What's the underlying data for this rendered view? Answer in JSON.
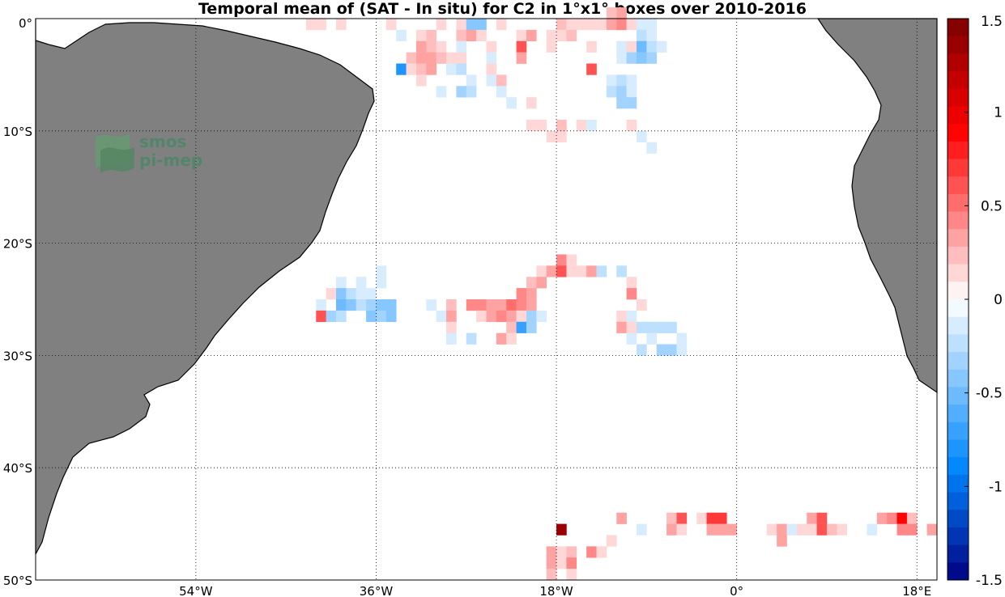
{
  "title": "Temporal mean of (SAT - In situ) for C2 in 1°x1° boxes over 2010-2016",
  "logo": {
    "line1": "smos",
    "line2": "pi-mep"
  },
  "colors": {
    "land": "#808080",
    "coast": "#000000",
    "background": "#ffffff"
  },
  "map": {
    "lon_range": [
      -70,
      20
    ],
    "lat_range": [
      -50,
      0
    ],
    "lat_ticks": [
      {
        "lat": 0,
        "label": "0°"
      },
      {
        "lat": -10,
        "label": "10°S"
      },
      {
        "lat": -20,
        "label": "20°S"
      },
      {
        "lat": -30,
        "label": "30°S"
      },
      {
        "lat": -40,
        "label": "40°S"
      },
      {
        "lat": -50,
        "label": "50°S"
      }
    ],
    "lon_ticks": [
      {
        "lon": -54,
        "label": "54°W"
      },
      {
        "lon": -36,
        "label": "36°W"
      },
      {
        "lon": -18,
        "label": "18°W"
      },
      {
        "lon": 0,
        "label": "0°"
      },
      {
        "lon": 18,
        "label": "18°E"
      }
    ],
    "grid": "dotted"
  },
  "colorbar": {
    "min": -1.5,
    "max": 1.5,
    "ticks": [
      {
        "v": 1.5,
        "label": "1.5"
      },
      {
        "v": 1,
        "label": "1"
      },
      {
        "v": 0.5,
        "label": "0.5"
      },
      {
        "v": 0,
        "label": "0"
      },
      {
        "v": -0.5,
        "label": "-0.5"
      },
      {
        "v": -1,
        "label": "-1"
      },
      {
        "v": -1.5,
        "label": "-1.5"
      }
    ],
    "levels": 32
  },
  "chart_data": {
    "type": "heatmap",
    "title": "Temporal mean of (SAT - In situ) for C2 in 1°x1° boxes over 2010-2016",
    "units_note": "",
    "cell_size_deg": 1,
    "cells": [
      {
        "lon": -43,
        "lat": -1,
        "v": 0.1
      },
      {
        "lon": -42,
        "lat": -1,
        "v": 0.15
      },
      {
        "lon": -40,
        "lat": -1,
        "v": 0.1
      },
      {
        "lon": -35,
        "lat": -1,
        "v": 0.1
      },
      {
        "lon": -30,
        "lat": -1,
        "v": 0.15
      },
      {
        "lon": -28,
        "lat": -1,
        "v": 0.15
      },
      {
        "lon": -27,
        "lat": -1,
        "v": -0.4
      },
      {
        "lon": -26,
        "lat": -1,
        "v": -0.4
      },
      {
        "lon": -24,
        "lat": -1,
        "v": 0.15
      },
      {
        "lon": -18,
        "lat": -1,
        "v": 0.2
      },
      {
        "lon": -17,
        "lat": -1,
        "v": 0.15
      },
      {
        "lon": -16,
        "lat": -1,
        "v": 0.1
      },
      {
        "lon": -15,
        "lat": -1,
        "v": 0.1
      },
      {
        "lon": -14,
        "lat": -1,
        "v": 0.15
      },
      {
        "lon": -13,
        "lat": -1,
        "v": 0.3
      },
      {
        "lon": -12,
        "lat": -1,
        "v": 0.4
      },
      {
        "lon": -11,
        "lat": -1,
        "v": 0.1
      },
      {
        "lon": -10,
        "lat": -1,
        "v": -0.1
      },
      {
        "lon": -9,
        "lat": -1,
        "v": -0.1
      },
      {
        "lon": -12,
        "lat": 0,
        "v": 0.3
      },
      {
        "lon": -13,
        "lat": 0,
        "v": 0.2
      },
      {
        "lon": -34,
        "lat": -2,
        "v": -0.1
      },
      {
        "lon": -32,
        "lat": -2,
        "v": 0.15
      },
      {
        "lon": -31,
        "lat": -2,
        "v": 0.2
      },
      {
        "lon": -28,
        "lat": -2,
        "v": 0.2
      },
      {
        "lon": -27,
        "lat": -2,
        "v": 0.3
      },
      {
        "lon": -26,
        "lat": -2,
        "v": 0.15
      },
      {
        "lon": -22,
        "lat": -2,
        "v": 0.1
      },
      {
        "lon": -21,
        "lat": -2,
        "v": 0.3
      },
      {
        "lon": -19,
        "lat": -2,
        "v": 0.1
      },
      {
        "lon": -18,
        "lat": -2,
        "v": 0.15
      },
      {
        "lon": -17,
        "lat": -2,
        "v": 0.2
      },
      {
        "lon": -10,
        "lat": -2,
        "v": -0.2
      },
      {
        "lon": -9,
        "lat": -2,
        "v": -0.15
      },
      {
        "lon": -32,
        "lat": -3,
        "v": 0.3
      },
      {
        "lon": -31,
        "lat": -3,
        "v": 0.25
      },
      {
        "lon": -30,
        "lat": -3,
        "v": 0.15
      },
      {
        "lon": -28,
        "lat": -3,
        "v": -0.1
      },
      {
        "lon": -25,
        "lat": -3,
        "v": 0.15
      },
      {
        "lon": -22,
        "lat": -3,
        "v": 0.6
      },
      {
        "lon": -19,
        "lat": -3,
        "v": 0.1
      },
      {
        "lon": -15,
        "lat": -3,
        "v": 0.15
      },
      {
        "lon": -12,
        "lat": -3,
        "v": -0.15
      },
      {
        "lon": -11,
        "lat": -3,
        "v": 0.1
      },
      {
        "lon": -10,
        "lat": -3,
        "v": -0.5
      },
      {
        "lon": -9,
        "lat": -3,
        "v": -0.2
      },
      {
        "lon": -8,
        "lat": -3,
        "v": -0.1
      },
      {
        "lon": -33,
        "lat": -4,
        "v": 0.2
      },
      {
        "lon": -32,
        "lat": -4,
        "v": 0.35
      },
      {
        "lon": -31,
        "lat": -4,
        "v": 0.3
      },
      {
        "lon": -30,
        "lat": -4,
        "v": 0.2
      },
      {
        "lon": -29,
        "lat": -4,
        "v": 0.1
      },
      {
        "lon": -28,
        "lat": -4,
        "v": 0.1
      },
      {
        "lon": -25,
        "lat": -4,
        "v": -0.1
      },
      {
        "lon": -22,
        "lat": -4,
        "v": 0.3
      },
      {
        "lon": -12,
        "lat": -4,
        "v": -0.1
      },
      {
        "lon": -11,
        "lat": -4,
        "v": -0.3
      },
      {
        "lon": -10,
        "lat": -4,
        "v": -0.45
      },
      {
        "lon": -9,
        "lat": -4,
        "v": -0.3
      },
      {
        "lon": -34,
        "lat": -5,
        "v": -0.8
      },
      {
        "lon": -33,
        "lat": -5,
        "v": 0.1
      },
      {
        "lon": -32,
        "lat": -5,
        "v": 0.2
      },
      {
        "lon": -31,
        "lat": -5,
        "v": 0.3
      },
      {
        "lon": -29,
        "lat": -5,
        "v": -0.15
      },
      {
        "lon": -28,
        "lat": -5,
        "v": -0.2
      },
      {
        "lon": -25,
        "lat": -5,
        "v": 0.15
      },
      {
        "lon": -15,
        "lat": -5,
        "v": 0.6
      },
      {
        "lon": -32,
        "lat": -6,
        "v": 0.15
      },
      {
        "lon": -27,
        "lat": -6,
        "v": -0.1
      },
      {
        "lon": -25,
        "lat": -6,
        "v": -0.1
      },
      {
        "lon": -24,
        "lat": -6,
        "v": 0.2
      },
      {
        "lon": -13,
        "lat": -6,
        "v": -0.15
      },
      {
        "lon": -12,
        "lat": -6,
        "v": -0.2
      },
      {
        "lon": -11,
        "lat": -6,
        "v": -0.15
      },
      {
        "lon": -30,
        "lat": -7,
        "v": -0.1
      },
      {
        "lon": -28,
        "lat": -7,
        "v": -0.3
      },
      {
        "lon": -27,
        "lat": -7,
        "v": -0.2
      },
      {
        "lon": -24,
        "lat": -7,
        "v": -0.1
      },
      {
        "lon": -13,
        "lat": -7,
        "v": -0.2
      },
      {
        "lon": -12,
        "lat": -7,
        "v": -0.3
      },
      {
        "lon": -11,
        "lat": -7,
        "v": -0.15
      },
      {
        "lon": -23,
        "lat": -8,
        "v": -0.1
      },
      {
        "lon": -21,
        "lat": -8,
        "v": 0.15
      },
      {
        "lon": -12,
        "lat": -8,
        "v": -0.35
      },
      {
        "lon": -11,
        "lat": -8,
        "v": -0.3
      },
      {
        "lon": -21,
        "lat": -10,
        "v": 0.15
      },
      {
        "lon": -20,
        "lat": -10,
        "v": 0.1
      },
      {
        "lon": -18,
        "lat": -10,
        "v": 0.2
      },
      {
        "lon": -16,
        "lat": -10,
        "v": 0.1
      },
      {
        "lon": -15,
        "lat": -10,
        "v": -0.15
      },
      {
        "lon": -11,
        "lat": -10,
        "v": 0.1
      },
      {
        "lon": -19,
        "lat": -11,
        "v": 0.15
      },
      {
        "lon": -18,
        "lat": -11,
        "v": 0.15
      },
      {
        "lon": -10,
        "lat": -11,
        "v": -0.1
      },
      {
        "lon": -9,
        "lat": -12,
        "v": -0.1
      },
      {
        "lon": -18,
        "lat": -22,
        "v": 0.45
      },
      {
        "lon": -17,
        "lat": -22,
        "v": 0.15
      },
      {
        "lon": -20,
        "lat": -23,
        "v": 0.1
      },
      {
        "lon": -19,
        "lat": -23,
        "v": 0.3
      },
      {
        "lon": -18,
        "lat": -23,
        "v": 0.6
      },
      {
        "lon": -17,
        "lat": -23,
        "v": 0.1
      },
      {
        "lon": -16,
        "lat": -23,
        "v": 0.15
      },
      {
        "lon": -15,
        "lat": -23,
        "v": 0.3
      },
      {
        "lon": -14,
        "lat": -23,
        "v": -0.2
      },
      {
        "lon": -12,
        "lat": -23,
        "v": -0.25
      },
      {
        "lon": -36,
        "lat": -23,
        "v": -0.15
      },
      {
        "lon": -21,
        "lat": -24,
        "v": 0.2
      },
      {
        "lon": -20,
        "lat": -24,
        "v": 0.3
      },
      {
        "lon": -11,
        "lat": -24,
        "v": 0.15
      },
      {
        "lon": -40,
        "lat": -24,
        "v": -0.15
      },
      {
        "lon": -38,
        "lat": -24,
        "v": -0.1
      },
      {
        "lon": -36,
        "lat": -24,
        "v": -0.15
      },
      {
        "lon": -41,
        "lat": -25,
        "v": 0.15
      },
      {
        "lon": -40,
        "lat": -25,
        "v": -0.4
      },
      {
        "lon": -39,
        "lat": -25,
        "v": -0.2
      },
      {
        "lon": -38,
        "lat": -25,
        "v": -0.15
      },
      {
        "lon": -37,
        "lat": -25,
        "v": -0.1
      },
      {
        "lon": -22,
        "lat": -25,
        "v": 0.4
      },
      {
        "lon": -21,
        "lat": -25,
        "v": 0.3
      },
      {
        "lon": -11,
        "lat": -25,
        "v": 0.4
      },
      {
        "lon": -42,
        "lat": -26,
        "v": -0.1
      },
      {
        "lon": -40,
        "lat": -26,
        "v": -0.5
      },
      {
        "lon": -39,
        "lat": -26,
        "v": -0.45
      },
      {
        "lon": -38,
        "lat": -26,
        "v": -0.2
      },
      {
        "lon": -37,
        "lat": -26,
        "v": -0.3
      },
      {
        "lon": -36,
        "lat": -26,
        "v": -0.45
      },
      {
        "lon": -35,
        "lat": -26,
        "v": -0.45
      },
      {
        "lon": -31,
        "lat": -26,
        "v": -0.1
      },
      {
        "lon": -29,
        "lat": -26,
        "v": 0.2
      },
      {
        "lon": -27,
        "lat": -26,
        "v": 0.4
      },
      {
        "lon": -26,
        "lat": -26,
        "v": 0.4
      },
      {
        "lon": -25,
        "lat": -26,
        "v": 0.3
      },
      {
        "lon": -24,
        "lat": -26,
        "v": 0.35
      },
      {
        "lon": -23,
        "lat": -26,
        "v": 0.5
      },
      {
        "lon": -22,
        "lat": -26,
        "v": 0.45
      },
      {
        "lon": -21,
        "lat": -26,
        "v": 0.3
      },
      {
        "lon": -10,
        "lat": -26,
        "v": 0.15
      },
      {
        "lon": -42,
        "lat": -27,
        "v": 0.6
      },
      {
        "lon": -41,
        "lat": -27,
        "v": -0.3
      },
      {
        "lon": -40,
        "lat": -27,
        "v": -0.2
      },
      {
        "lon": -37,
        "lat": -27,
        "v": -0.45
      },
      {
        "lon": -36,
        "lat": -27,
        "v": -0.3
      },
      {
        "lon": -35,
        "lat": -27,
        "v": -0.45
      },
      {
        "lon": -30,
        "lat": -27,
        "v": -0.1
      },
      {
        "lon": -29,
        "lat": -27,
        "v": 0.3
      },
      {
        "lon": -26,
        "lat": -27,
        "v": 0.15
      },
      {
        "lon": -25,
        "lat": -27,
        "v": 0.3
      },
      {
        "lon": -24,
        "lat": -27,
        "v": 0.45
      },
      {
        "lon": -23,
        "lat": -27,
        "v": 0.3
      },
      {
        "lon": -22,
        "lat": -27,
        "v": 0.15
      },
      {
        "lon": -21,
        "lat": -27,
        "v": -0.3
      },
      {
        "lon": -20,
        "lat": -27,
        "v": -0.15
      },
      {
        "lon": -12,
        "lat": -27,
        "v": 0.15
      },
      {
        "lon": -11,
        "lat": -27,
        "v": -0.1
      },
      {
        "lon": -29,
        "lat": -28,
        "v": 0.1
      },
      {
        "lon": -23,
        "lat": -28,
        "v": 0.2
      },
      {
        "lon": -22,
        "lat": -28,
        "v": -0.7
      },
      {
        "lon": -21,
        "lat": -28,
        "v": -0.3
      },
      {
        "lon": -12,
        "lat": -28,
        "v": 0.3
      },
      {
        "lon": -11,
        "lat": -28,
        "v": 0.1
      },
      {
        "lon": -10,
        "lat": -28,
        "v": -0.25
      },
      {
        "lon": -9,
        "lat": -28,
        "v": -0.2
      },
      {
        "lon": -8,
        "lat": -28,
        "v": -0.2
      },
      {
        "lon": -7,
        "lat": -28,
        "v": -0.25
      },
      {
        "lon": -29,
        "lat": -29,
        "v": -0.15
      },
      {
        "lon": -27,
        "lat": -29,
        "v": -0.2
      },
      {
        "lon": -24,
        "lat": -29,
        "v": 0.3
      },
      {
        "lon": -23,
        "lat": -29,
        "v": 0.15
      },
      {
        "lon": -11,
        "lat": -29,
        "v": -0.1
      },
      {
        "lon": -9,
        "lat": -29,
        "v": -0.1
      },
      {
        "lon": -6,
        "lat": -29,
        "v": -0.1
      },
      {
        "lon": -10,
        "lat": -30,
        "v": -0.2
      },
      {
        "lon": -8,
        "lat": -30,
        "v": -0.35
      },
      {
        "lon": -7,
        "lat": -30,
        "v": -0.3
      },
      {
        "lon": -6,
        "lat": -30,
        "v": -0.1
      },
      {
        "lon": -12,
        "lat": -45,
        "v": 0.3
      },
      {
        "lon": -7,
        "lat": -45,
        "v": 0.2
      },
      {
        "lon": -6,
        "lat": -45,
        "v": 0.6
      },
      {
        "lon": -4,
        "lat": -45,
        "v": 0.15
      },
      {
        "lon": -3,
        "lat": -45,
        "v": 0.7
      },
      {
        "lon": -2,
        "lat": -45,
        "v": 0.7
      },
      {
        "lon": 7,
        "lat": -45,
        "v": 0.3
      },
      {
        "lon": 8,
        "lat": -45,
        "v": 0.6
      },
      {
        "lon": 14,
        "lat": -45,
        "v": 0.3
      },
      {
        "lon": 15,
        "lat": -45,
        "v": 0.4
      },
      {
        "lon": 16,
        "lat": -45,
        "v": 0.9
      },
      {
        "lon": 17,
        "lat": -45,
        "v": 0.2
      },
      {
        "lon": -18,
        "lat": -46,
        "v": 1.35
      },
      {
        "lon": -10,
        "lat": -46,
        "v": -0.15
      },
      {
        "lon": -7,
        "lat": -46,
        "v": 0.3
      },
      {
        "lon": -6,
        "lat": -46,
        "v": 0.15
      },
      {
        "lon": -3,
        "lat": -46,
        "v": 0.35
      },
      {
        "lon": -2,
        "lat": -46,
        "v": 0.3
      },
      {
        "lon": -1,
        "lat": -46,
        "v": 0.3
      },
      {
        "lon": 3,
        "lat": -46,
        "v": 0.15
      },
      {
        "lon": 4,
        "lat": -46,
        "v": 0.3
      },
      {
        "lon": 5,
        "lat": -46,
        "v": -0.1
      },
      {
        "lon": 6,
        "lat": -46,
        "v": 0.1
      },
      {
        "lon": 7,
        "lat": -46,
        "v": 0.15
      },
      {
        "lon": 8,
        "lat": -46,
        "v": 0.6
      },
      {
        "lon": 9,
        "lat": -46,
        "v": 0.2
      },
      {
        "lon": 10,
        "lat": -46,
        "v": 0.15
      },
      {
        "lon": 13,
        "lat": -46,
        "v": -0.1
      },
      {
        "lon": 16,
        "lat": -46,
        "v": 0.4
      },
      {
        "lon": 17,
        "lat": -46,
        "v": 0.45
      },
      {
        "lon": 19,
        "lat": -46,
        "v": 0.3
      },
      {
        "lon": 4,
        "lat": -47,
        "v": 0.3
      },
      {
        "lon": -13,
        "lat": -47,
        "v": 0.15
      },
      {
        "lon": -19,
        "lat": -48,
        "v": 0.3
      },
      {
        "lon": -18,
        "lat": -48,
        "v": 0.15
      },
      {
        "lon": -17,
        "lat": -48,
        "v": 0.2
      },
      {
        "lon": -15,
        "lat": -48,
        "v": 0.4
      },
      {
        "lon": -14,
        "lat": -48,
        "v": 0.15
      },
      {
        "lon": -19,
        "lat": -49,
        "v": 0.35
      },
      {
        "lon": -18,
        "lat": -49,
        "v": 0.1
      },
      {
        "lon": -17,
        "lat": -49,
        "v": 0.45
      },
      {
        "lon": -19,
        "lat": -50,
        "v": 0.2
      },
      {
        "lon": -17,
        "lat": -50,
        "v": 0.15
      }
    ]
  }
}
